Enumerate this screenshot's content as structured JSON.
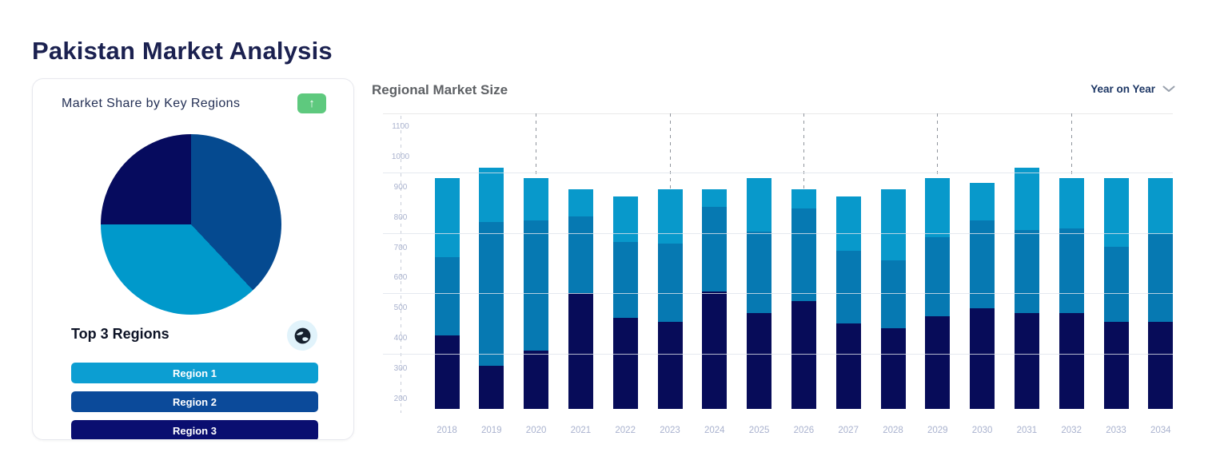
{
  "title": "Pakistan Market Analysis",
  "card": {
    "title": "Market Share by Key Regions",
    "expand_icon": "↑",
    "top3_heading": "Top 3 Regions",
    "regions": [
      {
        "label": "Region 1",
        "color": "#0C9ED2"
      },
      {
        "label": "Region 2",
        "color": "#0B4A9A"
      },
      {
        "label": "Region 3",
        "color": "#0A0E70"
      }
    ]
  },
  "chart": {
    "title": "Regional Market Size",
    "range_selector": "Year on Year"
  },
  "chart_data": [
    {
      "type": "pie",
      "title": "Market Share by Key Regions",
      "start_angle": "top",
      "direction": "clockwise",
      "slices": [
        {
          "label": "Region 2",
          "percent": 38,
          "color": "#054A90"
        },
        {
          "label": "Region 1",
          "percent": 37,
          "color": "#0099CB"
        },
        {
          "label": "Region 3",
          "percent": 25,
          "color": "#060B5E"
        }
      ]
    },
    {
      "type": "bar",
      "stacked": true,
      "title": "Regional Market Size",
      "x": [
        2018,
        2019,
        2020,
        2021,
        2022,
        2023,
        2024,
        2025,
        2026,
        2027,
        2028,
        2029,
        2030,
        2031,
        2032,
        2033,
        2034
      ],
      "y_ticks": [
        200,
        300,
        400,
        500,
        600,
        700,
        800,
        900,
        1000,
        1100
      ],
      "gridlines_y": [
        350,
        550,
        750,
        950
      ],
      "dashed_columns_x": [
        2020,
        2023,
        2026,
        2029,
        2032
      ],
      "y_plot_range": [
        168,
        1145
      ],
      "series": [
        {
          "name": "Region 3",
          "color": "#070C59",
          "cumulative_top": [
            410,
            310,
            360,
            550,
            470,
            455,
            555,
            485,
            525,
            450,
            435,
            475,
            500,
            485,
            485,
            455,
            455
          ]
        },
        {
          "name": "Region 2",
          "color": "#0679B2",
          "cumulative_top": [
            670,
            785,
            790,
            805,
            720,
            715,
            835,
            755,
            830,
            690,
            660,
            735,
            790,
            760,
            765,
            705,
            745
          ]
        },
        {
          "name": "Region 1",
          "color": "#0899CB",
          "cumulative_top": [
            930,
            965,
            930,
            895,
            870,
            895,
            895,
            930,
            895,
            870,
            895,
            930,
            915,
            965,
            930,
            930,
            930
          ]
        }
      ]
    }
  ],
  "colors": {
    "title_text": "#1B2150",
    "green_button": "#5EC97E",
    "globe_badge_bg": "#E1F3FB",
    "axis_label": "#A9B2CE",
    "gridline": "#E7EAF0",
    "dashed_column": "#8F949C"
  }
}
